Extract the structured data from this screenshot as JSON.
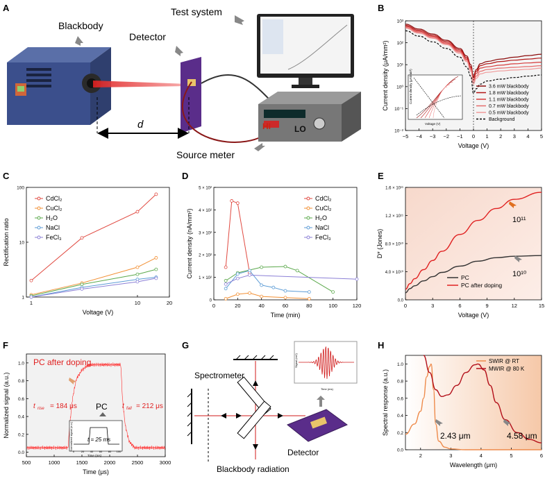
{
  "panel_letters": [
    "A",
    "B",
    "C",
    "D",
    "E",
    "F",
    "G",
    "H"
  ],
  "colors": {
    "red": "#e0483f",
    "orange": "#f28f33",
    "green": "#5aa84a",
    "blue": "#5b9bd5",
    "purple": "#8b7fd6",
    "dark": "#c01818"
  },
  "panelA": {
    "blackbody": "Blackbody",
    "detector": "Detector",
    "test_system": "Test system",
    "source_meter": "Source meter",
    "distance": "d",
    "hi": "HI",
    "lo": "LO"
  },
  "panelG": {
    "spectrometer": "Spectrometer",
    "detector": "Detector",
    "blackbody_radiation": "Blackbody radiation",
    "inset_ylabel": "Signal (mV)",
    "inset_xlabel": "Time (ms)"
  },
  "chart_data": [
    {
      "panel": "B",
      "type": "line",
      "y_scale": "log",
      "xlabel": "Voltage (V)",
      "ylabel": "Current density (μA/mm²)",
      "xlim": [
        -5,
        5
      ],
      "ylim": [
        0.01,
        1000
      ],
      "x_ticks": [
        "−5",
        "−4",
        "−3",
        "−2",
        "−1",
        "0",
        "1",
        "2",
        "3",
        "4",
        "5"
      ],
      "y_ticks": [
        "10⁻²",
        "10⁻¹",
        "10⁰",
        "10¹",
        "10²",
        "10³"
      ],
      "x": [
        -5,
        -4,
        -3,
        -2,
        -1,
        -0.5,
        -0.2,
        0,
        0.2,
        0.5,
        1,
        2,
        3,
        4,
        5
      ],
      "series": [
        {
          "name": "3.6 mW blackbody",
          "values": [
            700,
            420,
            250,
            130,
            55,
            25,
            10,
            3,
            6,
            11,
            14,
            18,
            22,
            26,
            30
          ]
        },
        {
          "name": "1.8 mW blackbody",
          "values": [
            620,
            370,
            220,
            115,
            48,
            21,
            8,
            2.5,
            5,
            9,
            11,
            14,
            16,
            18,
            20
          ]
        },
        {
          "name": "1.1 mW blackbody",
          "values": [
            560,
            330,
            195,
            100,
            42,
            18,
            7,
            2,
            4,
            7,
            8,
            9.5,
            11,
            12,
            13
          ]
        },
        {
          "name": "0.7 mW blackbody",
          "values": [
            500,
            300,
            175,
            90,
            37,
            16,
            6,
            1.6,
            3,
            5,
            6,
            7,
            7.6,
            8.2,
            9
          ]
        },
        {
          "name": "0.5 mW blackbody",
          "values": [
            460,
            270,
            160,
            82,
            33,
            14,
            5,
            1.3,
            2.4,
            3.8,
            4.5,
            5.2,
            5.7,
            6.2,
            7
          ]
        },
        {
          "name": "Background",
          "values": [
            350,
            200,
            110,
            55,
            22,
            8,
            3,
            0.5,
            0.8,
            1.3,
            1.8,
            2.2,
            2.6,
            3,
            3.4
          ]
        }
      ],
      "inset": {
        "xlabel": "Voltage (V)",
        "ylabel": "Current density (μA/mm²)"
      }
    },
    {
      "panel": "C",
      "type": "line",
      "y_scale": "log",
      "x_scale": "log",
      "xlabel": "Voltage (V)",
      "ylabel": "Rectification ratio",
      "xlim": [
        0.9,
        20
      ],
      "ylim": [
        1,
        100
      ],
      "x_ticks": [
        "1",
        "10",
        "20"
      ],
      "y_ticks": [
        "1",
        "10",
        "100"
      ],
      "x": [
        1,
        3,
        10,
        15
      ],
      "series": [
        {
          "name": "CdCl₂",
          "values": [
            2,
            12,
            36,
            75
          ]
        },
        {
          "name": "CuCl₂",
          "values": [
            1.1,
            1.8,
            3.5,
            5.2
          ]
        },
        {
          "name": "H₂O",
          "values": [
            1.05,
            1.7,
            2.6,
            3.2
          ]
        },
        {
          "name": "NaCl",
          "values": [
            1.0,
            1.5,
            2.1,
            2.3
          ]
        },
        {
          "name": "FeCl₃",
          "values": [
            1.0,
            1.4,
            1.9,
            2.2
          ]
        }
      ]
    },
    {
      "panel": "D",
      "type": "line",
      "xlabel": "Time (min)",
      "ylabel": "Current density (nA/mm²)",
      "xlim": [
        0,
        120
      ],
      "ylim": [
        0,
        500
      ],
      "x_ticks": [
        "0",
        "20",
        "40",
        "60",
        "80",
        "100",
        "120"
      ],
      "y_ticks": [
        "0",
        "1 × 10²",
        "2 × 10²",
        "3 × 10²",
        "4 × 10²",
        "5 × 10²"
      ],
      "series": [
        {
          "name": "CdCl₂",
          "x": [
            10,
            15,
            20,
            30
          ],
          "values": [
            145,
            440,
            430,
            120
          ]
        },
        {
          "name": "CuCl₂",
          "x": [
            10,
            20,
            30,
            40,
            60,
            80
          ],
          "values": [
            5,
            25,
            30,
            15,
            10,
            5
          ]
        },
        {
          "name": "H₂O",
          "x": [
            10,
            20,
            40,
            60,
            70,
            100
          ],
          "values": [
            85,
            120,
            145,
            148,
            130,
            35
          ]
        },
        {
          "name": "NaCl",
          "x": [
            10,
            20,
            30,
            40,
            50,
            60,
            80
          ],
          "values": [
            50,
            115,
            130,
            65,
            55,
            40,
            35
          ]
        },
        {
          "name": "FeCl₃",
          "x": [
            10,
            20,
            30,
            120
          ],
          "values": [
            70,
            95,
            110,
            92
          ]
        }
      ]
    },
    {
      "panel": "E",
      "type": "line",
      "xlabel": "Voltage (V)",
      "ylabel": "D* (Jones)",
      "xlim": [
        0,
        15
      ],
      "ylim": [
        0,
        160000000000.0
      ],
      "x_ticks": [
        "0",
        "3",
        "6",
        "9",
        "12",
        "15"
      ],
      "y_ticks": [
        "0.0",
        "4.0 × 10¹⁰",
        "8.0 × 10¹⁰",
        "1.2 × 10¹¹",
        "1.6 × 10¹¹"
      ],
      "series": [
        {
          "name": "PC",
          "x": [
            0,
            0.5,
            1,
            2,
            3,
            4,
            6,
            8,
            10,
            12,
            15
          ],
          "values": [
            10000000000.0,
            16000000000.0,
            20000000000.0,
            27000000000.0,
            33000000000.0,
            39000000000.0,
            48000000000.0,
            55000000000.0,
            60000000000.0,
            62000000000.0,
            63000000000.0
          ]
        },
        {
          "name": "PC after doping",
          "x": [
            0,
            0.5,
            1,
            2,
            3,
            4,
            6,
            8,
            10,
            12,
            15
          ],
          "values": [
            15000000000.0,
            23000000000.0,
            30000000000.0,
            43000000000.0,
            56000000000.0,
            69000000000.0,
            93000000000.0,
            113000000000.0,
            130000000000.0,
            143000000000.0,
            153000000000.0
          ]
        }
      ],
      "annotations": [
        "10¹¹",
        "10¹⁰"
      ]
    },
    {
      "panel": "F",
      "type": "line",
      "xlabel": "Time (μs)",
      "ylabel": "Normalized signal (a.u.)",
      "xlim": [
        500,
        3000
      ],
      "ylim": [
        -0.05,
        1.1
      ],
      "x_ticks": [
        "500",
        "1000",
        "1500",
        "2000",
        "2500",
        "3000"
      ],
      "y_ticks": [
        "0.0",
        "0.2",
        "0.4",
        "0.6",
        "0.8",
        "1.0"
      ],
      "series": [
        {
          "name": "PC after doping",
          "x": [
            500,
            1250,
            1280,
            1330,
            1400,
            1500,
            1600,
            1700,
            2200,
            2230,
            2280,
            2350,
            2450,
            3000
          ],
          "values": [
            0.05,
            0.05,
            0.3,
            0.6,
            0.82,
            0.92,
            0.97,
            0.98,
            0.98,
            0.6,
            0.3,
            0.12,
            0.05,
            0.05
          ]
        }
      ],
      "labels": {
        "doping": "PC after doping",
        "pc": "PC",
        "t_rise": "t",
        "t_rise_sub": "rise",
        "t_rise_val": "= 184 μs",
        "t_fall": "t",
        "t_fall_sub": "fall",
        "t_fall_val": "= 212 μs"
      },
      "inset": {
        "xlabel": "Time (ms)",
        "ylabel": "Normalized signal (a.u.)",
        "label": "t = 25 ms",
        "x_ticks": [
          "0",
          "20",
          "40",
          "60",
          "80",
          "100"
        ]
      }
    },
    {
      "panel": "H",
      "type": "line",
      "xlabel": "Wavelength (μm)",
      "ylabel": "Spectral response (a.u.)",
      "xlim": [
        1.5,
        6
      ],
      "ylim": [
        0,
        1.1
      ],
      "x_ticks": [
        "2",
        "3",
        "4",
        "5",
        "6"
      ],
      "y_ticks": [
        "0.0",
        "0.2",
        "0.4",
        "0.6",
        "0.8",
        "1.0"
      ],
      "series": [
        {
          "name": "SWIR @ RT",
          "x": [
            1.5,
            1.8,
            2.0,
            2.1,
            2.2,
            2.3,
            2.35,
            2.43,
            2.5,
            2.6,
            2.8,
            3.0,
            3.5,
            4,
            6
          ],
          "values": [
            0.18,
            0.3,
            0.45,
            0.6,
            0.85,
            0.97,
            1.0,
            0.7,
            0.3,
            0.1,
            0.03,
            0.01,
            0,
            0,
            0
          ]
        },
        {
          "name": "MWIR @ 80 K",
          "x": [
            2.1,
            2.3,
            2.5,
            2.7,
            2.9,
            3.2,
            3.5,
            3.8,
            3.9,
            4.1,
            4.3,
            4.5,
            4.8,
            5.2,
            5.6,
            6
          ],
          "values": [
            1.1,
            0.9,
            0.7,
            0.62,
            0.64,
            0.75,
            0.9,
            0.99,
            1.0,
            0.93,
            0.75,
            0.55,
            0.35,
            0.2,
            0.12,
            0.08
          ]
        }
      ],
      "annotations": [
        "2.43 μm",
        "4.58 μm"
      ]
    }
  ]
}
